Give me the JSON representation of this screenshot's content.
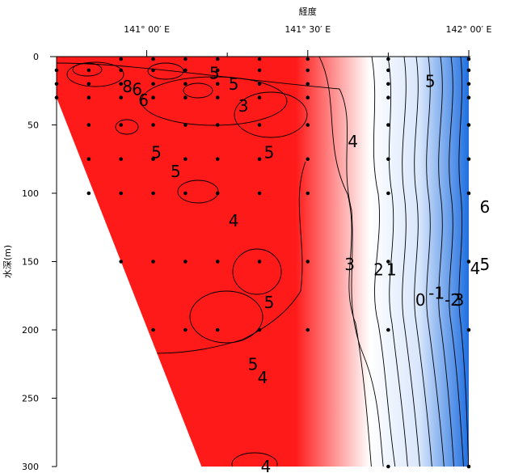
{
  "chart_data": {
    "type": "heatmap",
    "title": "",
    "xlabel": "経度",
    "ylabel": "水深(m)",
    "xlim": [
      140.72,
      142.0
    ],
    "ylim": [
      300,
      0
    ],
    "x_ticks": [
      {
        "value": 141.0,
        "label": "141° 00′ E"
      },
      {
        "value": 141.5,
        "label": "141° 30′ E"
      },
      {
        "value": 142.0,
        "label": "142° 00′ E"
      }
    ],
    "x_minor_ticks": [
      141.25,
      141.75
    ],
    "y_ticks": [
      {
        "value": 0,
        "label": "0"
      },
      {
        "value": 50,
        "label": "50"
      },
      {
        "value": 100,
        "label": "100"
      },
      {
        "value": 150,
        "label": "150"
      },
      {
        "value": 200,
        "label": "200"
      },
      {
        "value": 250,
        "label": "250"
      },
      {
        "value": 300,
        "label": "300"
      }
    ],
    "colors": {
      "warm": "#ff1a1a",
      "neutral": "#ffffff",
      "cold": "#1f6fe0"
    },
    "contour_labels": [
      {
        "x": 140.94,
        "y": 22,
        "text": "8"
      },
      {
        "x": 140.97,
        "y": 24,
        "text": "6"
      },
      {
        "x": 140.99,
        "y": 32,
        "text": "6"
      },
      {
        "x": 141.21,
        "y": 12,
        "text": "5"
      },
      {
        "x": 141.27,
        "y": 20,
        "text": "5"
      },
      {
        "x": 141.3,
        "y": 36,
        "text": "3"
      },
      {
        "x": 141.03,
        "y": 70,
        "text": "5"
      },
      {
        "x": 141.09,
        "y": 84,
        "text": "5"
      },
      {
        "x": 141.38,
        "y": 70,
        "text": "5"
      },
      {
        "x": 141.27,
        "y": 120,
        "text": "4"
      },
      {
        "x": 141.64,
        "y": 62,
        "text": "4"
      },
      {
        "x": 141.88,
        "y": 18,
        "text": "5"
      },
      {
        "x": 142.05,
        "y": 110,
        "text": "6"
      },
      {
        "x": 142.05,
        "y": 152,
        "text": "5"
      },
      {
        "x": 142.02,
        "y": 155,
        "text": "4"
      },
      {
        "x": 141.63,
        "y": 152,
        "text": "3"
      },
      {
        "x": 141.72,
        "y": 156,
        "text": "2"
      },
      {
        "x": 141.76,
        "y": 156,
        "text": "1"
      },
      {
        "x": 141.85,
        "y": 178,
        "text": "0"
      },
      {
        "x": 141.9,
        "y": 173,
        "text": "-1"
      },
      {
        "x": 141.95,
        "y": 178,
        "text": "-2"
      },
      {
        "x": 141.97,
        "y": 178,
        "text": "3"
      },
      {
        "x": 141.38,
        "y": 180,
        "text": "5"
      },
      {
        "x": 141.33,
        "y": 225,
        "text": "5"
      },
      {
        "x": 141.36,
        "y": 235,
        "text": "4"
      },
      {
        "x": 141.37,
        "y": 300,
        "text": "4"
      }
    ],
    "stations": [
      {
        "x": 140.72,
        "depths": [
          10,
          20,
          30
        ]
      },
      {
        "x": 140.82,
        "depths": [
          10,
          20,
          30,
          50,
          75,
          100
        ]
      },
      {
        "x": 140.92,
        "depths": [
          0,
          10,
          20,
          30,
          50,
          75,
          100,
          150
        ]
      },
      {
        "x": 141.02,
        "depths": [
          0,
          10,
          20,
          30,
          50,
          75,
          100,
          150,
          200
        ]
      },
      {
        "x": 141.12,
        "depths": [
          0,
          10,
          20,
          30,
          50,
          75,
          100,
          150,
          200
        ]
      },
      {
        "x": 141.22,
        "depths": [
          0,
          10,
          20,
          30,
          50,
          75,
          100,
          150,
          200
        ]
      },
      {
        "x": 141.35,
        "depths": [
          0,
          10,
          20,
          30,
          50,
          75,
          100,
          150,
          200
        ]
      },
      {
        "x": 141.5,
        "depths": [
          0,
          10,
          20,
          30,
          50,
          75,
          100,
          150,
          200
        ]
      },
      {
        "x": 141.75,
        "depths": [
          0,
          10,
          20,
          30,
          50,
          75,
          100,
          150,
          200,
          300
        ]
      },
      {
        "x": 142.0,
        "depths": [
          0,
          10,
          20,
          30,
          50,
          75,
          100,
          150,
          200,
          300
        ]
      }
    ]
  }
}
